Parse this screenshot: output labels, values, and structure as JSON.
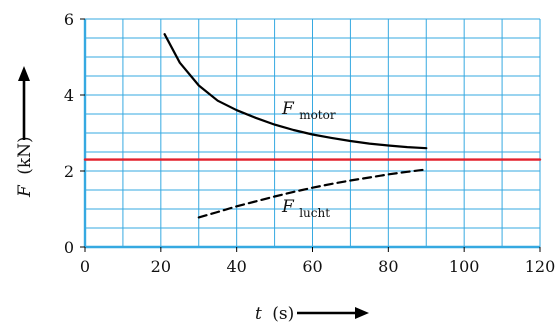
{
  "chart_data": {
    "type": "line",
    "xlabel_var": "t",
    "xlabel_unit": "(s)",
    "ylabel_var": "F",
    "ylabel_unit": "(kN)",
    "xlim": [
      0,
      120
    ],
    "ylim": [
      0,
      6
    ],
    "x_ticks": [
      0,
      20,
      40,
      60,
      80,
      100,
      120
    ],
    "y_ticks": [
      0,
      2,
      4,
      6
    ],
    "x_minor_step": 10,
    "y_minor_step": 1,
    "grid": true,
    "grid_color": "#36a9e1",
    "series": [
      {
        "label_main": "F",
        "label_sub": "motor",
        "style": "solid",
        "color": "#000000",
        "x": [
          21,
          25,
          30,
          35,
          40,
          45,
          50,
          55,
          60,
          65,
          70,
          75,
          80,
          85,
          90
        ],
        "y": [
          5.6,
          4.85,
          4.25,
          3.85,
          3.6,
          3.4,
          3.22,
          3.08,
          2.96,
          2.87,
          2.79,
          2.72,
          2.67,
          2.63,
          2.6
        ]
      },
      {
        "label_main": "F",
        "label_sub": "lucht",
        "style": "dashed",
        "color": "#000000",
        "x": [
          30,
          35,
          40,
          45,
          50,
          55,
          60,
          65,
          70,
          75,
          80,
          85,
          90
        ],
        "y": [
          0.78,
          0.92,
          1.07,
          1.2,
          1.33,
          1.45,
          1.56,
          1.66,
          1.75,
          1.83,
          1.91,
          1.98,
          2.04
        ]
      },
      {
        "style": "solid",
        "color": "#e4202c",
        "x": [
          0,
          120
        ],
        "y": [
          2.3,
          2.3
        ]
      }
    ]
  }
}
